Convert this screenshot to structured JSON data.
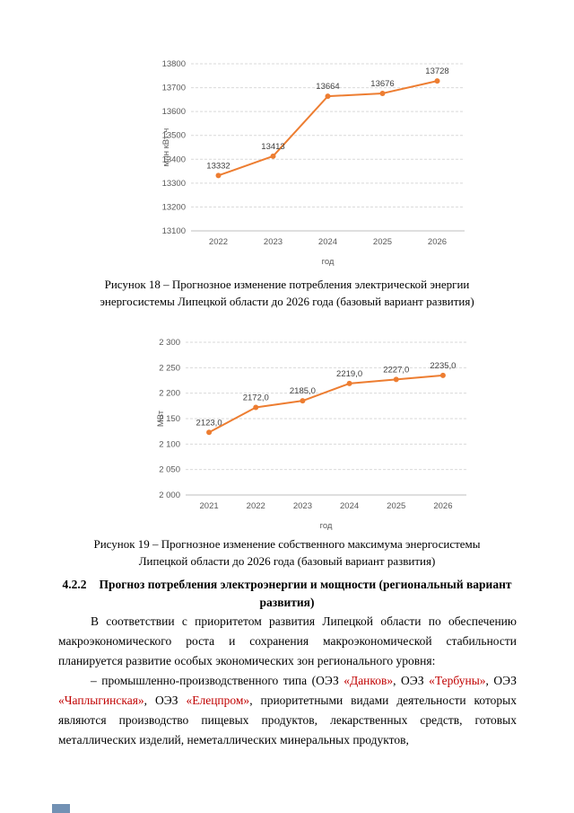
{
  "figure18": {
    "caption": "Рисунок 18 – Прогнозное изменение потребления электрической энергии энергосистемы Липецкой области до 2026 года (базовый вариант развития)"
  },
  "figure19": {
    "caption": "Рисунок 19 – Прогнозное изменение собственного максимума энергосистемы Липецкой области до 2026 года (базовый вариант развития)"
  },
  "section": {
    "number": "4.2.2",
    "title": "Прогноз потребления электроэнергии и мощности (региональный вариант развития)"
  },
  "body": {
    "paragraph1": "В соответствии с приоритетом развития Липецкой области по обеспечению макроэкономического роста и сохранения макроэкономической стабильности планируется развитие особых экономических зон регионального уровня:",
    "paragraph2_segments": [
      {
        "text": "– промышленно-производственного типа (ОЭЗ ",
        "color": "#000000"
      },
      {
        "text": "«Данков»",
        "color": "#c00000"
      },
      {
        "text": ", ОЭЗ ",
        "color": "#000000"
      },
      {
        "text": "«Тербуны»",
        "color": "#c00000"
      },
      {
        "text": ", ОЭЗ ",
        "color": "#000000"
      },
      {
        "text": "«Чаплыгинская»",
        "color": "#c00000"
      },
      {
        "text": ", ОЭЗ ",
        "color": "#000000"
      },
      {
        "text": "«Елецпром»",
        "color": "#c00000"
      },
      {
        "text": ", приоритетными видами деятельности которых являются производство пищевых продуктов, лекарственных средств, готовых металлических изделий, неметаллических минеральных продуктов,",
        "color": "#000000"
      }
    ]
  },
  "chart_data": [
    {
      "type": "line",
      "title": "",
      "categories": [
        "2022",
        "2023",
        "2024",
        "2025",
        "2026"
      ],
      "values": [
        13332,
        13413,
        13664,
        13676,
        13728
      ],
      "point_labels": [
        "13332",
        "13413",
        "13664",
        "13676",
        "13728"
      ],
      "xlabel": "год",
      "ylabel": "млн кВт·ч",
      "ylim": [
        13100,
        13800
      ],
      "ytick_step": 100,
      "ytick_labels": [
        "13100",
        "13200",
        "13300",
        "13400",
        "13500",
        "13600",
        "13700",
        "13800"
      ],
      "grid": "dashed-horizontal",
      "legend": "none",
      "line_color": "#ED7D31",
      "tick_color": "#595959"
    },
    {
      "type": "line",
      "title": "",
      "categories": [
        "2021",
        "2022",
        "2023",
        "2024",
        "2025",
        "2026"
      ],
      "values": [
        2123.0,
        2172.0,
        2185.0,
        2219.0,
        2227.0,
        2235.0
      ],
      "point_labels": [
        "2123,0",
        "2172,0",
        "2185,0",
        "2219,0",
        "2227,0",
        "2235,0"
      ],
      "xlabel": "год",
      "ylabel": "МВт",
      "ylim": [
        2000,
        2300
      ],
      "ytick_step": 50,
      "ytick_labels": [
        "2 000",
        "2 050",
        "2 100",
        "2 150",
        "2 200",
        "2 250",
        "2 300"
      ],
      "grid": "dashed-horizontal",
      "legend": "none",
      "line_color": "#ED7D31",
      "tick_color": "#595959"
    }
  ],
  "artifact": {
    "color": "#7291b4"
  }
}
